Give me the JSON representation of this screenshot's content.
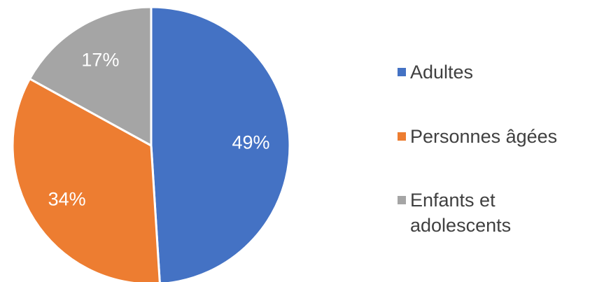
{
  "chart_data": {
    "type": "pie",
    "title": "",
    "slices": [
      {
        "label": "Adultes",
        "value": 49,
        "display": "49%",
        "color": "#4472C4"
      },
      {
        "label": "Personnes âgées",
        "value": 34,
        "display": "34%",
        "color": "#ED7D31"
      },
      {
        "label": "Enfants et adolescents",
        "value": 17,
        "display": "17%",
        "color": "#A5A5A5"
      }
    ],
    "legend": {
      "position": "right",
      "entries": [
        {
          "lines": [
            "Adultes"
          ]
        },
        {
          "lines": [
            "Personnes âgées"
          ]
        },
        {
          "lines": [
            "Enfants et",
            "adolescents"
          ]
        }
      ]
    },
    "start_angle": "12 o'clock",
    "direction": "clockwise"
  }
}
